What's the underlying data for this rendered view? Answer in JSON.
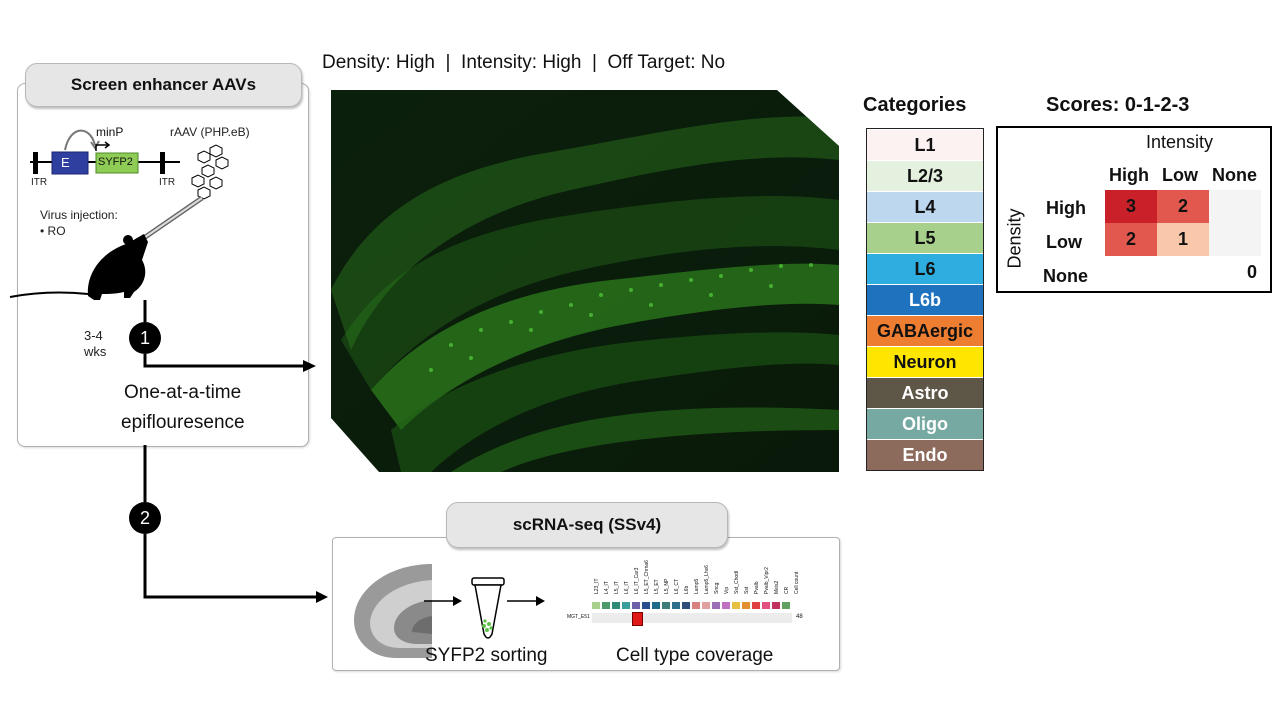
{
  "left_box": {
    "title": "Screen enhancer AAVs",
    "construct": {
      "enhancer": "E",
      "promoter": "minP",
      "reporter": "SYFP2",
      "itr_left": "ITR",
      "itr_right": "ITR"
    },
    "vector": "rAAV (PHP.eB)",
    "injection_label": "Virus injection:",
    "injection_route": "• RO",
    "duration_line1": "3-4",
    "duration_line2": "wks",
    "readout_line1": "One-at-a-time",
    "readout_line2": "epiflouresence"
  },
  "steps": [
    "1",
    "2"
  ],
  "image_caption": "Density: High  |  Intensity: High  |  Off Target: No",
  "categories": {
    "title": "Categories",
    "items": [
      {
        "label": "L1",
        "color": "#fdf2f2",
        "text": "#111111"
      },
      {
        "label": "L2/3",
        "color": "#e4f1de",
        "text": "#111111"
      },
      {
        "label": "L4",
        "color": "#bcd7ee",
        "text": "#111111"
      },
      {
        "label": "L5",
        "color": "#a8d08d",
        "text": "#111111"
      },
      {
        "label": "L6",
        "color": "#2eaee0",
        "text": "#111111"
      },
      {
        "label": "L6b",
        "color": "#1f72bd",
        "text": "#ffffff"
      },
      {
        "label": "GABAergic",
        "color": "#ed7d31",
        "text": "#111111"
      },
      {
        "label": "Neuron",
        "color": "#ffe600",
        "text": "#111111"
      },
      {
        "label": "Astro",
        "color": "#5e5647",
        "text": "#ffffff"
      },
      {
        "label": "Oligo",
        "color": "#76a9a1",
        "text": "#ffffff"
      },
      {
        "label": "Endo",
        "color": "#8c6a5c",
        "text": "#ffffff"
      }
    ]
  },
  "scores": {
    "title": "Scores: 0-1-2-3",
    "col_axis": "Intensity",
    "row_axis": "Density",
    "columns": [
      "High",
      "Low",
      "None"
    ],
    "rows": [
      "High",
      "Low",
      "None"
    ],
    "values": [
      [
        "3",
        "2",
        ""
      ],
      [
        "2",
        "1",
        ""
      ],
      [
        "",
        "",
        "0"
      ]
    ],
    "colors": [
      [
        "#c9202a",
        "#e2584e",
        "#f4f4f4"
      ],
      [
        "#e2584e",
        "#f9c7a9",
        "#f4f4f4"
      ],
      [
        "#ffffff",
        "#ffffff",
        "#ffffff"
      ]
    ]
  },
  "scrna": {
    "title": "scRNA-seq (SSv4)",
    "sorting_label": "SYFP2 sorting",
    "coverage_label": "Cell type coverage",
    "row_label": "MGT_E51",
    "cell_count": "48",
    "col_labels": [
      "L23_IT",
      "L4_IT",
      "L5_IT",
      "L6_IT",
      "L6_IT_Car3",
      "L5_ET_Chrna6",
      "L5_ET",
      "L5_NP",
      "L6_CT",
      "L6b",
      "Lamp5",
      "Lamp5_Lhx6",
      "Sncg",
      "Vip",
      "Sst_Chodl",
      "Sst",
      "Pvalb",
      "Pvalb_Vipr2",
      "Meis2",
      "CR",
      "Cell count"
    ],
    "col_colors": [
      "#a8d08d",
      "#4e9a6a",
      "#2e8b75",
      "#3a9f9a",
      "#6d5fa8",
      "#2b4f8c",
      "#1d6a8a",
      "#3d7e7a",
      "#2e6f8e",
      "#2f4d7a",
      "#d98080",
      "#e0a0a0",
      "#9b6fb8",
      "#c070c0",
      "#e6c040",
      "#e09030",
      "#e04040",
      "#e05080",
      "#c03060",
      "#60a060"
    ]
  }
}
